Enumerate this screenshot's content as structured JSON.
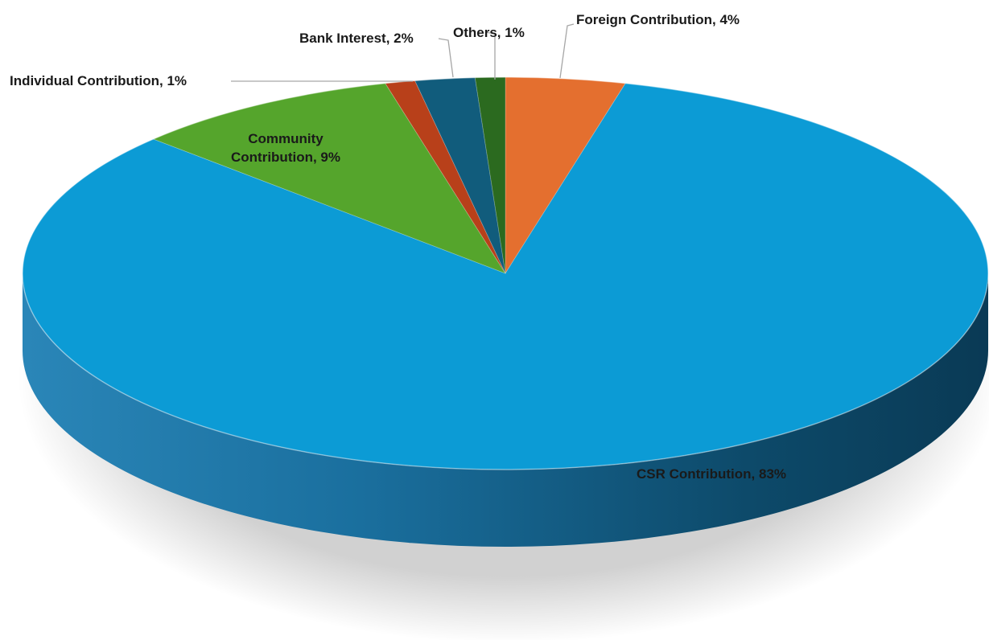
{
  "chart_data": {
    "type": "pie",
    "title": "",
    "style": "3d",
    "legend": "none",
    "data_labels": "category-name-and-percent",
    "start_angle_deg": 0,
    "direction": "clockwise",
    "slices": [
      {
        "category": "Foreign Contribution",
        "value": 4,
        "label": "Foreign Contribution, 4%",
        "color": "#E46F2F"
      },
      {
        "category": "CSR Contribution",
        "value": 83,
        "label": "CSR Contribution, 83%",
        "color": "#0C9BD5"
      },
      {
        "category": "Community Contribution",
        "value": 9,
        "label_lines": [
          "Community",
          "Contribution, 9%"
        ],
        "color": "#55A52C"
      },
      {
        "category": "Individual Contribution",
        "value": 1,
        "label": "Individual Contribution, 1%",
        "color": "#B8401A"
      },
      {
        "category": "Bank Interest",
        "value": 2,
        "label": "Bank Interest, 2%",
        "color": "#115C7C"
      },
      {
        "category": "Others",
        "value": 1,
        "label": "Others, 1%",
        "color": "#2B6A1F"
      }
    ]
  }
}
